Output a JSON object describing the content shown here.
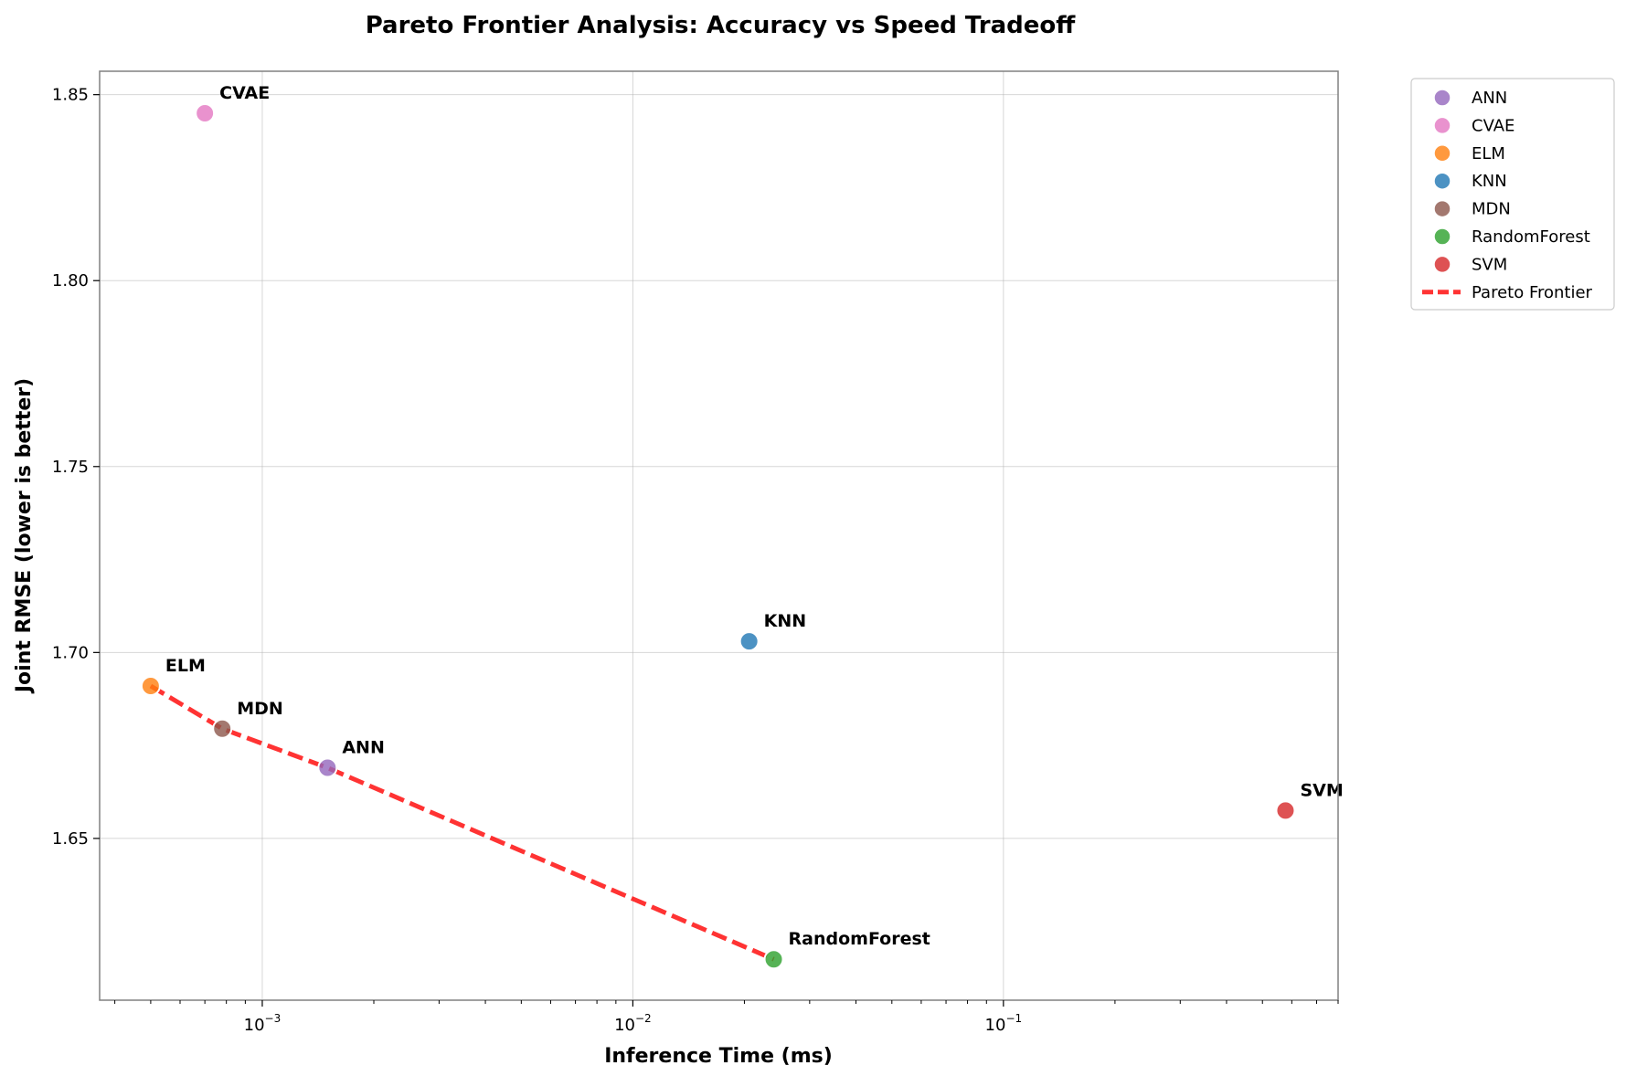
{
  "chart_data": {
    "type": "scatter",
    "title": "Pareto Frontier Analysis: Accuracy vs Speed Tradeoff",
    "xlabel": "Inference Time (ms)",
    "ylabel": "Joint RMSE (lower is better)",
    "xscale": "log",
    "xlim": [
      0.000364,
      0.8
    ],
    "ylim": [
      1.6065,
      1.8563
    ],
    "xticks": [
      {
        "value": 0.001,
        "base": "10",
        "exp": "−3"
      },
      {
        "value": 0.01,
        "base": "10",
        "exp": "−2"
      },
      {
        "value": 0.1,
        "base": "10",
        "exp": "−1"
      }
    ],
    "yticks": [
      {
        "value": 1.65,
        "label": "1.65"
      },
      {
        "value": 1.7,
        "label": "1.70"
      },
      {
        "value": 1.75,
        "label": "1.75"
      },
      {
        "value": 1.8,
        "label": "1.80"
      },
      {
        "value": 1.85,
        "label": "1.85"
      }
    ],
    "grid": true,
    "legend_position": "outside-top-right",
    "series": [
      {
        "name": "ANN",
        "label": "ANN",
        "x": 0.0015,
        "y": 1.669,
        "color": "#9467bd"
      },
      {
        "name": "CVAE",
        "label": "CVAE",
        "x": 0.0007,
        "y": 1.845,
        "color": "#e377c2"
      },
      {
        "name": "ELM",
        "label": "ELM",
        "x": 0.0005,
        "y": 1.691,
        "color": "#ff7f0e"
      },
      {
        "name": "KNN",
        "label": "KNN",
        "x": 0.0206,
        "y": 1.703,
        "color": "#1f77b4"
      },
      {
        "name": "MDN",
        "label": "MDN",
        "x": 0.00078,
        "y": 1.6795,
        "color": "#8c564b"
      },
      {
        "name": "RandomForest",
        "label": "RandomForest",
        "x": 0.024,
        "y": 1.6175,
        "color": "#2ca02c"
      },
      {
        "name": "SVM",
        "label": "SVM",
        "x": 0.577,
        "y": 1.6575,
        "color": "#d62728"
      }
    ],
    "pareto_frontier": {
      "name": "Pareto Frontier",
      "color": "#ff0000",
      "points": [
        {
          "x": 0.0005,
          "y": 1.691
        },
        {
          "x": 0.00078,
          "y": 1.6795
        },
        {
          "x": 0.0015,
          "y": 1.669
        },
        {
          "x": 0.024,
          "y": 1.6175
        }
      ]
    }
  }
}
